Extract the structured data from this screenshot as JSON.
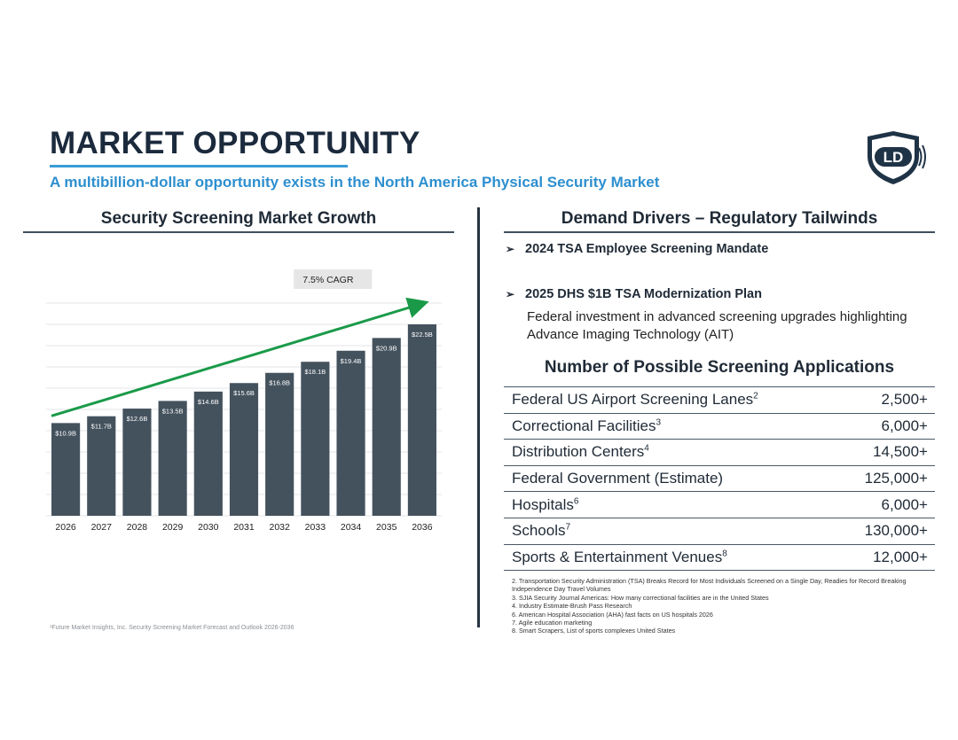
{
  "slide": {
    "title": "MARKET OPPORTUNITY",
    "subtitle": "A multibillion-dollar opportunity exists in the North America Physical Security Market",
    "logo_text": "LD",
    "accent": "#3a9bd5",
    "title_color": "#1b2a3c"
  },
  "left": {
    "heading": "Security Screening Market Growth",
    "cagr_label": "7.5% CAGR",
    "source": "¹Future Market Insights, Inc. Security Screening Market Forecast and Outlook 2026-2036"
  },
  "chart_data": {
    "type": "bar",
    "categories": [
      "2026",
      "2027",
      "2028",
      "2029",
      "2030",
      "2031",
      "2032",
      "2033",
      "2034",
      "2035",
      "2036"
    ],
    "values": [
      10.9,
      11.7,
      12.6,
      13.5,
      14.6,
      15.6,
      16.8,
      18.1,
      19.4,
      20.9,
      22.5
    ],
    "value_labels": [
      "$10.9B",
      "$11.7B",
      "$12.6B",
      "$13.5B",
      "$14.6B",
      "$15.6B",
      "$16.8B",
      "$18.1B",
      "$19.4B",
      "$20.9B",
      "$22.5B"
    ],
    "title": "Security Screening Market Growth",
    "xlabel": "",
    "ylabel": "",
    "ylim": [
      0,
      25
    ],
    "grid": true,
    "bar_color": "#44525e",
    "trend_color": "#1a9a49",
    "annotation": "7.5% CAGR"
  },
  "right": {
    "heading": "Demand Drivers – Regulatory Tailwinds",
    "bullet_glyph": "➢",
    "bullets": [
      {
        "label": "2024 TSA Employee Screening Mandate"
      },
      {
        "label": "2025 DHS $1B TSA Modernization Plan",
        "description": "Federal investment in advanced screening upgrades highlighting Advance Imaging Technology (AIT)"
      }
    ],
    "apps_heading": "Number of Possible Screening Applications",
    "apps": [
      {
        "name": "Federal US Airport Screening Lanes",
        "ref": "2",
        "value": "2,500+"
      },
      {
        "name": "Correctional Facilities",
        "ref": "3",
        "value": "6,000+"
      },
      {
        "name": "Distribution Centers",
        "ref": "4",
        "value": "14,500+"
      },
      {
        "name": "Federal Government (Estimate)",
        "ref": "",
        "value": "125,000+"
      },
      {
        "name": "Hospitals",
        "ref": "6",
        "value": "6,000+"
      },
      {
        "name": "Schools",
        "ref": "7",
        "value": "130,000+"
      },
      {
        "name": "Sports & Entertainment Venues",
        "ref": "8",
        "value": "12,000+"
      }
    ],
    "footnotes": [
      "2. Transportation Security Administration (TSA) Breaks Record for Most Individuals Screened on a Single Day, Readies for Record Breaking Independence Day Travel Volumes",
      "3. SJIA Security Journal Americas: How many correctional facilities are in the United States",
      "4. Industry Estimate-Brush Pass Research",
      "6. American Hospital Association (AHA) fast facts on US hospitals 2026",
      "7. Agile education marketing",
      "8. Smart Scrapers, List of sports complexes United States"
    ]
  }
}
